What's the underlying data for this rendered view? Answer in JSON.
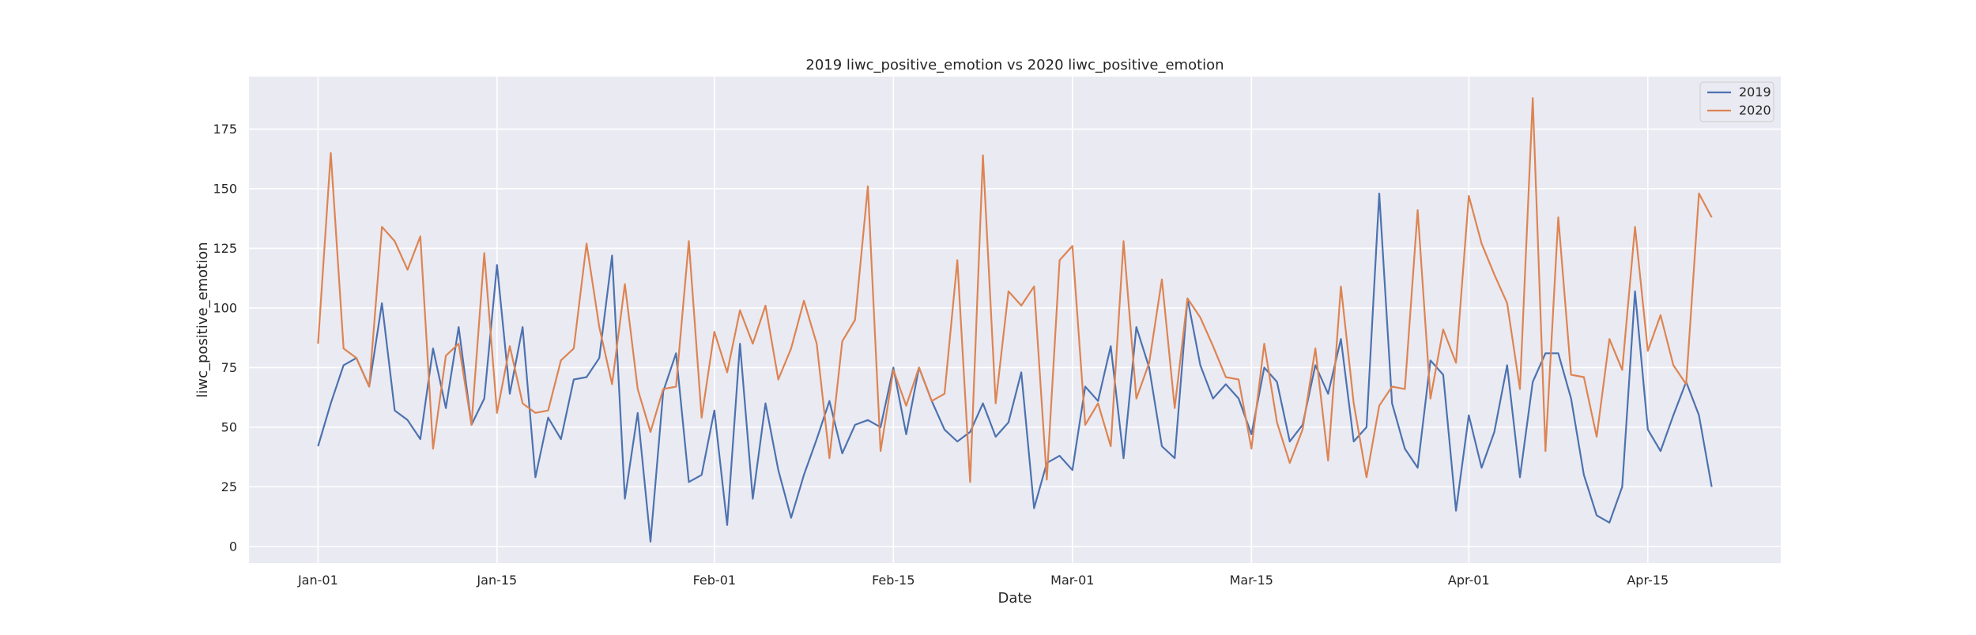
{
  "chart_data": {
    "type": "line",
    "title": "2019 liwc_positive_emotion vs 2020 liwc_positive_emotion",
    "xlabel": "Date",
    "ylabel": "liwc_positive_emotion",
    "x_start": "Jan-01",
    "x_tick_labels": [
      "Jan-01",
      "Jan-15",
      "Feb-01",
      "Feb-15",
      "Mar-01",
      "Mar-15",
      "Apr-01",
      "Apr-15"
    ],
    "x_tick_days": [
      0,
      14,
      31,
      45,
      59,
      73,
      90,
      104
    ],
    "xlim_days": [
      -5.4,
      114.4
    ],
    "yticks": [
      0,
      25,
      50,
      75,
      100,
      125,
      150,
      175
    ],
    "ylim": [
      -7,
      197
    ],
    "grid": true,
    "legend": "top-right",
    "series": [
      {
        "name": "2019",
        "color": "#4c72b0",
        "values": [
          42,
          60,
          76,
          79,
          67,
          102,
          57,
          53,
          45,
          83,
          58,
          92,
          51,
          62,
          118,
          64,
          92,
          29,
          54,
          45,
          70,
          71,
          79,
          122,
          20,
          56,
          2,
          65,
          81,
          27,
          30,
          57,
          9,
          85,
          20,
          60,
          32,
          12,
          30,
          45,
          61,
          39,
          51,
          53,
          50,
          75,
          47,
          75,
          61,
          49,
          44,
          48,
          60,
          46,
          52,
          73,
          16,
          35,
          38,
          32,
          67,
          61,
          84,
          37,
          92,
          75,
          42,
          37,
          104,
          76,
          62,
          68,
          62,
          47,
          75,
          69,
          44,
          51,
          76,
          64,
          87,
          44,
          50,
          148,
          60,
          41,
          33,
          78,
          72,
          15,
          55,
          33,
          48,
          76,
          29,
          69,
          81,
          81,
          62,
          30,
          13,
          10,
          25,
          107,
          49,
          40,
          55,
          69,
          55,
          25
        ]
      },
      {
        "name": "2020",
        "color": "#dd8452",
        "values": [
          85,
          165,
          83,
          79,
          67,
          134,
          128,
          116,
          130,
          41,
          80,
          85,
          51,
          123,
          56,
          84,
          60,
          56,
          57,
          78,
          83,
          127,
          92,
          68,
          110,
          66,
          48,
          66,
          67,
          128,
          54,
          90,
          73,
          99,
          85,
          101,
          70,
          83,
          103,
          85,
          37,
          86,
          95,
          151,
          40,
          74,
          59,
          75,
          61,
          64,
          120,
          27,
          164,
          60,
          107,
          101,
          109,
          28,
          120,
          126,
          51,
          60,
          42,
          128,
          62,
          77,
          112,
          58,
          104,
          96,
          84,
          71,
          70,
          41,
          85,
          52,
          35,
          49,
          83,
          36,
          109,
          60,
          29,
          59,
          67,
          66,
          141,
          62,
          91,
          77,
          147,
          127,
          114,
          102,
          66,
          188,
          40,
          138,
          72,
          71,
          46,
          87,
          74,
          134,
          82,
          97,
          76,
          68,
          148,
          138
        ]
      }
    ]
  }
}
